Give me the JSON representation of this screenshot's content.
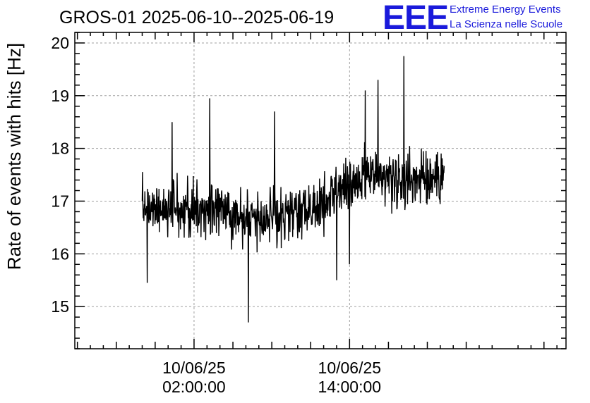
{
  "chart_data": {
    "type": "line",
    "title": "GROS-01 2025-06-10--2025-06-19",
    "ylabel": "Rate of events with hits [Hz]",
    "xlabel": "",
    "ylim": [
      14.2,
      20.2
    ],
    "yticks": [
      15,
      16,
      17,
      18,
      19,
      20
    ],
    "xlim_hours": [
      -7.2,
      30.7
    ],
    "xticks": [
      {
        "hour": 2,
        "date": "10/06/25",
        "time": "02:00:00"
      },
      {
        "hour": 14,
        "date": "10/06/25",
        "time": "14:00:00"
      }
    ],
    "grid": true,
    "series": [
      {
        "x_start_hour": -2.0,
        "x_end_hour": 21.3,
        "points": 900,
        "trend_hours": [
          -2.0,
          4.0,
          8.0,
          11.0,
          13.0,
          16.0,
          21.3
        ],
        "trend_values": [
          16.85,
          16.85,
          16.65,
          16.85,
          17.2,
          17.45,
          17.45
        ],
        "noise_sd": 0.35,
        "spikes": [
          {
            "hour": 6.2,
            "value": 14.7
          },
          {
            "hour": 3.2,
            "value": 18.95
          },
          {
            "hour": 18.2,
            "value": 19.75
          },
          {
            "hour": 8.2,
            "value": 18.7
          },
          {
            "hour": 0.3,
            "value": 18.5
          },
          {
            "hour": 15.2,
            "value": 19.1
          },
          {
            "hour": 16.2,
            "value": 19.3
          },
          {
            "hour": -1.6,
            "value": 15.45
          },
          {
            "hour": 13.0,
            "value": 15.5
          },
          {
            "hour": 14.0,
            "value": 15.8
          }
        ],
        "color": "#000000"
      }
    ]
  },
  "logo": {
    "letters": "EEE",
    "line1": "Extreme Energy Events",
    "line2": "La Scienza nelle Scuole",
    "color": "#1a1adb"
  }
}
